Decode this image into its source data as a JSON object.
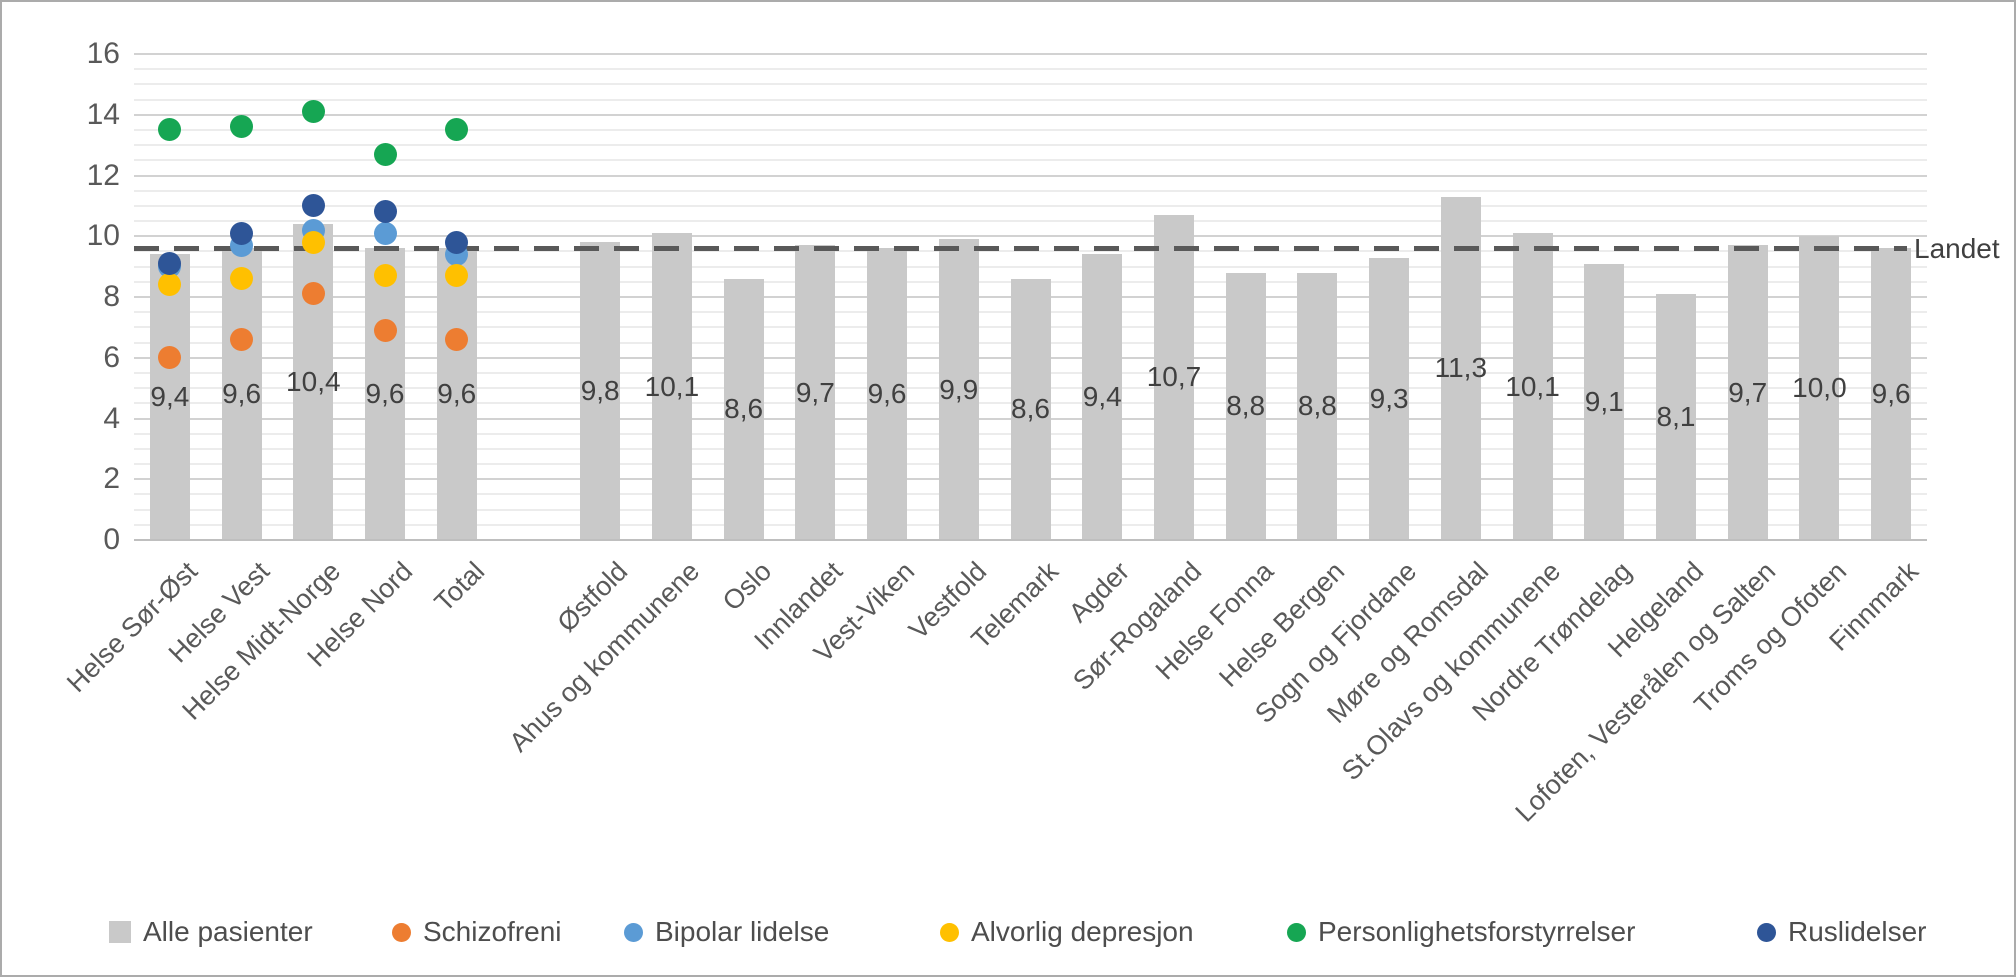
{
  "chart_data": {
    "type": "bar+scatter",
    "title": "",
    "categories": [
      "Helse Sør-Øst",
      "Helse Vest",
      "Helse Midt-Norge",
      "Helse Nord",
      "Total",
      "Østfold",
      "Ahus og kommunene",
      "Oslo",
      "Innlandet",
      "Vest-Viken",
      "Vestfold",
      "Telemark",
      "Agder",
      "Sør-Rogaland",
      "Helse Fonna",
      "Helse Bergen",
      "Sogn og Fjordane",
      "Møre og Romsdal",
      "St.Olavs og kommunene",
      "Nordre Trøndelag",
      "Helgeland",
      "Lofoten, Vesterålen og Salten",
      "Troms og Ofoten",
      "Finnmark"
    ],
    "bar_series": {
      "name": "Alle pasienter",
      "color": "#C9C9C9",
      "values": [
        9.4,
        9.6,
        10.4,
        9.6,
        9.6,
        9.8,
        10.1,
        8.6,
        9.7,
        9.6,
        9.9,
        8.6,
        9.4,
        10.7,
        8.8,
        8.8,
        9.3,
        11.3,
        10.1,
        9.1,
        8.1,
        9.7,
        10.0,
        9.6
      ],
      "labels": [
        "9,4",
        "9,6",
        "10,4",
        "9,6",
        "9,6",
        "9,8",
        "10,1",
        "8,6",
        "9,7",
        "9,6",
        "9,9",
        "8,6",
        "9,4",
        "10,7",
        "8,8",
        "8,8",
        "9,3",
        "11,3",
        "10,1",
        "9,1",
        "8,1",
        "9,7",
        "10,0",
        "9,6"
      ]
    },
    "dot_series": [
      {
        "name": "Schizofreni",
        "color": "#ED7D31",
        "values": [
          6.0,
          6.6,
          8.1,
          6.9,
          6.6
        ]
      },
      {
        "name": "Bipolar lidelse",
        "color": "#5B9BD5",
        "values": [
          9.0,
          9.7,
          10.2,
          10.1,
          9.4
        ]
      },
      {
        "name": "Alvorlig depresjon",
        "color": "#FFC000",
        "values": [
          8.4,
          8.6,
          9.8,
          8.7,
          8.7
        ]
      },
      {
        "name": "Personlighetsforstyrrelser",
        "color": "#16A653",
        "values": [
          13.5,
          13.6,
          14.1,
          12.7,
          13.5
        ]
      },
      {
        "name": "Ruslidelser",
        "color": "#2E5597",
        "values": [
          9.1,
          10.1,
          11.0,
          10.8,
          9.8
        ]
      }
    ],
    "reference_line": {
      "label": "Landet",
      "value": 9.6,
      "color": "#595959"
    },
    "y_axis": {
      "min": 0,
      "max": 16,
      "tick_step": 2,
      "minor_step": 0.5,
      "ticks": [
        "0",
        "2",
        "4",
        "6",
        "8",
        "10",
        "12",
        "14",
        "16"
      ]
    },
    "legend": [
      {
        "label": "Alle pasienter",
        "marker": "square",
        "color": "#C9C9C9"
      },
      {
        "label": "Schizofreni",
        "marker": "circle",
        "color": "#ED7D31"
      },
      {
        "label": "Bipolar lidelse",
        "marker": "circle",
        "color": "#5B9BD5"
      },
      {
        "label": "Alvorlig depresjon",
        "marker": "circle",
        "color": "#FFC000"
      },
      {
        "label": "Personlighetsforstyrrelser",
        "marker": "circle",
        "color": "#16A653"
      },
      {
        "label": "Ruslidelser",
        "marker": "circle",
        "color": "#2E5597"
      }
    ],
    "layout_hints": {
      "grid": "minor 0.5 / major 2",
      "legend_position": "bottom",
      "gap_after_category_index": 4,
      "bar_labels_position": "center of bar",
      "dots_only_on_first_5_categories": true
    }
  }
}
